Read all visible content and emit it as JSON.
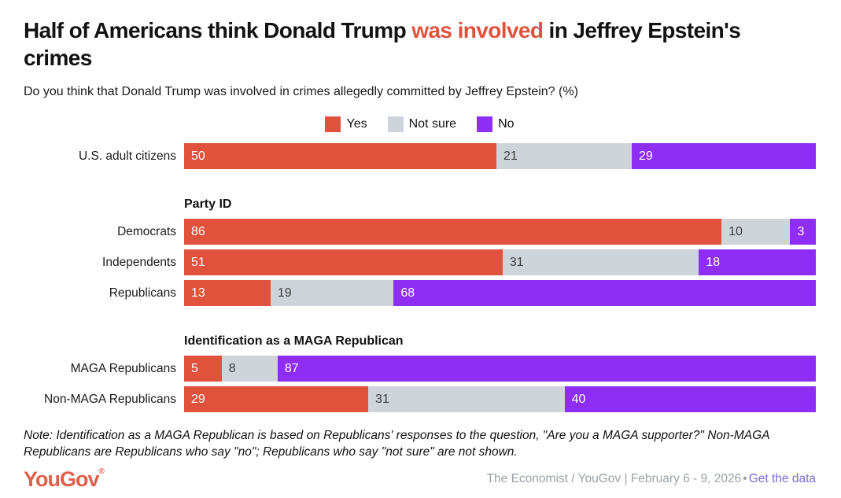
{
  "header": {
    "title_pre": "Half of Americans think Donald Trump ",
    "title_accent": "was involved",
    "title_post": " in Jeffrey Epstein's crimes",
    "accent_color": "#E0523C",
    "subtitle": "Do you think that Donald Trump was involved in crimes allegedly committed by Jeffrey Epstein? (%)"
  },
  "legend": {
    "items": [
      {
        "label": "Yes",
        "color": "#E0523C"
      },
      {
        "label": "Not sure",
        "color": "#CFD4DB"
      },
      {
        "label": "No",
        "color": "#8E2EF4"
      }
    ]
  },
  "chart_data": {
    "type": "bar",
    "variant": "horizontal-stacked",
    "unit": "%",
    "xlim": [
      0,
      100
    ],
    "series_names": [
      "Yes",
      "Not sure",
      "No"
    ],
    "colors": {
      "yes": "#E0523C",
      "not_sure": "#CFD4DB",
      "no": "#8E2EF4"
    },
    "groups": [
      {
        "header": "",
        "rows": [
          {
            "label": "U.S. adult citizens",
            "values": [
              50,
              21,
              29
            ]
          }
        ]
      },
      {
        "header": "Party ID",
        "rows": [
          {
            "label": "Democrats",
            "values": [
              86,
              10,
              3
            ]
          },
          {
            "label": "Independents",
            "values": [
              51,
              31,
              18
            ]
          },
          {
            "label": "Republicans",
            "values": [
              13,
              19,
              68
            ]
          }
        ]
      },
      {
        "header": "Identification as a MAGA Republican",
        "rows": [
          {
            "label": "MAGA Republicans",
            "values": [
              5,
              8,
              87
            ]
          },
          {
            "label": "Non-MAGA Republicans",
            "values": [
              29,
              31,
              40
            ]
          }
        ]
      }
    ]
  },
  "note": "Note: Identification as a MAGA Republican is based on Republicans' responses to the question, \"Are you a MAGA supporter?\" Non-MAGA Republicans are Republicans who say \"no\"; Republicans who say \"not sure\" are not shown.",
  "footer": {
    "logo": "YouGov",
    "logo_mark": "®",
    "logo_color": "#DF5F4B",
    "credit": "The Economist / YouGov | February 6 - 9, 2026",
    "separator": "•",
    "link_label": "Get the data",
    "link_color": "#7C6BD8"
  }
}
